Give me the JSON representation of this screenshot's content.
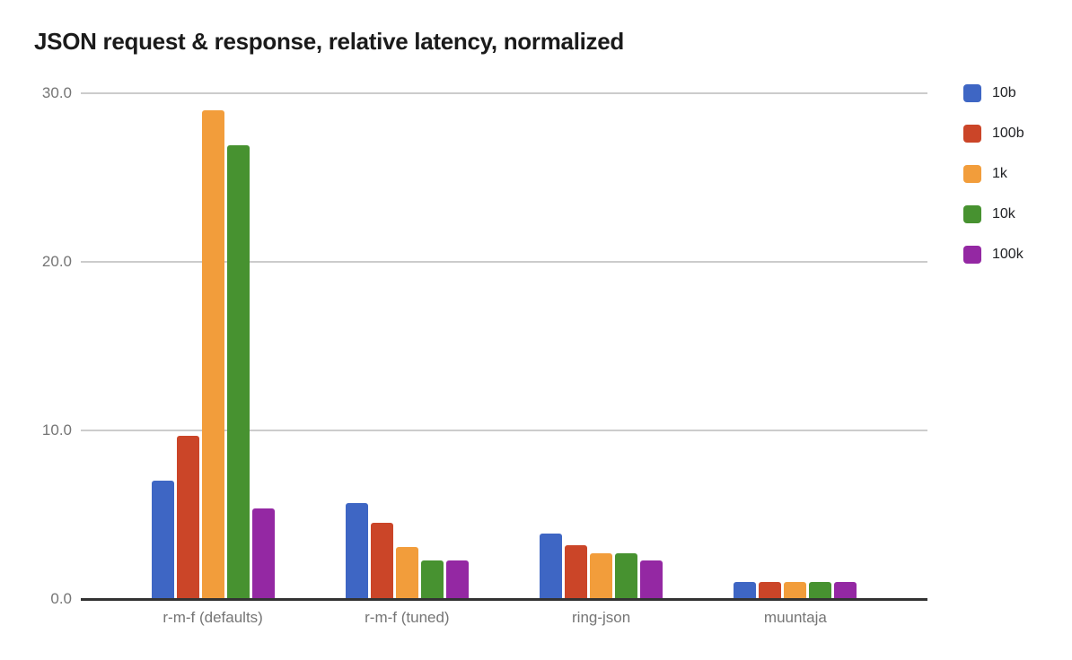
{
  "chart_data": {
    "type": "bar",
    "title": "JSON request & response, relative latency, normalized",
    "categories": [
      "r-m-f (defaults)",
      "r-m-f (tuned)",
      "ring-json",
      "muuntaja"
    ],
    "series": [
      {
        "name": "10b",
        "color": "#3e66c4",
        "values": [
          7.0,
          5.7,
          3.9,
          1.0
        ]
      },
      {
        "name": "100b",
        "color": "#cb4528",
        "values": [
          9.7,
          4.5,
          3.2,
          1.0
        ]
      },
      {
        "name": "1k",
        "color": "#f29d3b",
        "values": [
          29.0,
          3.1,
          2.7,
          1.0
        ]
      },
      {
        "name": "10k",
        "color": "#479230",
        "values": [
          26.9,
          2.3,
          2.7,
          1.0
        ]
      },
      {
        "name": "100k",
        "color": "#9428a3",
        "values": [
          5.4,
          2.3,
          2.3,
          1.0
        ]
      }
    ],
    "y_ticks": [
      {
        "label": "30.0",
        "value": 30
      },
      {
        "label": "20.0",
        "value": 20
      },
      {
        "label": "10.0",
        "value": 10
      },
      {
        "label": "0.0",
        "value": 0
      }
    ],
    "ylim": [
      0,
      30
    ],
    "xlabel": "",
    "ylabel": "",
    "grid": true,
    "legend_position": "right-top",
    "colors": {
      "title_text": "#1b1b1b",
      "axis_label_text": "#757575",
      "legend_text": "#202124",
      "gridline": "#cccccc",
      "baseline": "#333333",
      "background": "#ffffff"
    }
  }
}
